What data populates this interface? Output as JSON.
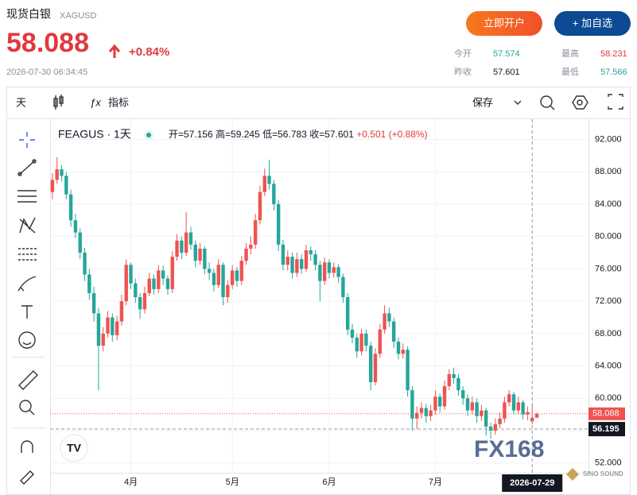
{
  "header": {
    "title": "现货白银",
    "symbol": "XAGUSD",
    "price": "58.088",
    "change": "+0.84%",
    "time": "2026-07-30 06:34:45",
    "buttons": [
      "立即开户",
      "+ 加自选"
    ],
    "stats": [
      {
        "label": "今开",
        "value": "57.574"
      },
      {
        "label": "最高",
        "value": "58.231"
      },
      {
        "label": "昨收",
        "value": "57.601"
      },
      {
        "label": "最低",
        "value": "57.566"
      }
    ]
  },
  "toolbar": {
    "interval": "天",
    "indicators": "指标",
    "save": "保存"
  },
  "watermark": "FX168",
  "brand": "SINO SOUND",
  "chart_data": {
    "type": "candlestick",
    "legend": {
      "symbol": "FEAGUS · 1天",
      "items": [
        "开=57.156",
        "高=59.245",
        "低=56.783",
        "收=57.601"
      ],
      "change": "+0.501 (+0.88%)"
    },
    "up_color": "#ef5350",
    "down_color": "#26a69a",
    "open": [
      85.5,
      87.0,
      88.3,
      87.5,
      85.2,
      82.0,
      80.5,
      78.0,
      75.3,
      73.0,
      70.5,
      66.5,
      68.0,
      70.0,
      67.8,
      69.5,
      72.0,
      76.5,
      74.2,
      72.5,
      71.0,
      73.0,
      74.8,
      73.5,
      75.8,
      74.8,
      73.5,
      77.5,
      79.5,
      78.0,
      80.5,
      79.0,
      77.0,
      78.5,
      76.0,
      75.5,
      74.0,
      76.5,
      72.5,
      74.0,
      75.8,
      74.5,
      77.0,
      78.5,
      79.0,
      82.0,
      85.5,
      87.5,
      86.5,
      84.0,
      79.0,
      76.5,
      77.5,
      75.5,
      77.2,
      76.0,
      78.3,
      77.8,
      76.5,
      74.5,
      76.8,
      75.5,
      76.2,
      75.0,
      72.5,
      68.5,
      67.5,
      65.8,
      68.0,
      66.5,
      62.0,
      65.5,
      68.5,
      70.5,
      69.5,
      67.0,
      65.5,
      66.0,
      61.0,
      57.5,
      58.2,
      58.8,
      57.8,
      58.5,
      60.2,
      59.0,
      61.5,
      63.0,
      62.5,
      61.0,
      60.0,
      58.5,
      59.5,
      57.8,
      58.5,
      56.5,
      56.0,
      56.8,
      57.5,
      59.5,
      60.5,
      58.5,
      59.5,
      58.0,
      57.156,
      57.601
    ],
    "high": [
      87.8,
      89.8,
      88.8,
      88.0,
      85.8,
      82.8,
      81.0,
      78.6,
      76.0,
      73.8,
      71.2,
      68.8,
      70.8,
      70.5,
      70.2,
      72.8,
      77.2,
      76.8,
      74.8,
      73.0,
      73.8,
      75.5,
      75.3,
      76.5,
      76.4,
      75.2,
      78.2,
      80.3,
      80.0,
      83.0,
      81.2,
      79.5,
      79.2,
      78.8,
      76.8,
      76.0,
      77.2,
      76.8,
      74.6,
      76.5,
      76.2,
      77.6,
      79.2,
      80.0,
      82.8,
      86.3,
      88.4,
      89.5,
      87.0,
      84.5,
      79.6,
      78.3,
      78.0,
      78.0,
      77.8,
      79.0,
      78.8,
      78.3,
      77.0,
      77.4,
      77.2,
      76.8,
      76.6,
      75.4,
      73.0,
      69.2,
      68.0,
      68.6,
      68.5,
      67.0,
      66.2,
      69.2,
      71.5,
      71.2,
      70.0,
      67.5,
      66.8,
      66.4,
      61.5,
      59.0,
      59.5,
      59.3,
      59.2,
      61.0,
      60.6,
      62.2,
      63.6,
      63.8,
      63.0,
      61.5,
      60.5,
      60.2,
      60.0,
      59.2,
      58.8,
      57.0,
      57.5,
      58.2,
      60.2,
      61.0,
      60.8,
      60.2,
      59.8,
      59.0,
      59.245,
      58.231
    ],
    "low": [
      84.6,
      86.5,
      86.8,
      84.6,
      81.2,
      79.8,
      77.2,
      74.5,
      72.2,
      69.5,
      61.0,
      65.8,
      67.5,
      67.0,
      67.2,
      69.0,
      71.5,
      73.5,
      71.8,
      69.8,
      70.5,
      72.6,
      72.8,
      73.0,
      74.0,
      72.8,
      73.0,
      77.0,
      77.2,
      77.6,
      78.4,
      76.2,
      76.5,
      75.3,
      74.6,
      73.2,
      73.6,
      71.5,
      71.8,
      73.5,
      73.8,
      74.0,
      76.5,
      77.8,
      78.5,
      81.5,
      85.0,
      85.8,
      83.2,
      78.2,
      75.8,
      75.8,
      74.8,
      75.0,
      75.4,
      75.6,
      77.0,
      75.8,
      72.0,
      74.0,
      74.8,
      74.9,
      74.3,
      71.8,
      67.8,
      66.8,
      65.0,
      65.3,
      65.8,
      61.0,
      61.6,
      65.0,
      68.0,
      68.8,
      66.2,
      64.8,
      64.9,
      60.2,
      56.0,
      56.2,
      57.5,
      57.0,
      57.2,
      58.0,
      58.3,
      58.6,
      61.0,
      61.8,
      60.3,
      59.2,
      57.8,
      58.0,
      57.0,
      57.2,
      55.4,
      55.0,
      55.5,
      56.3,
      57.0,
      59.0,
      58.0,
      58.0,
      57.4,
      57.3,
      56.783,
      57.566
    ],
    "close": [
      87.0,
      88.3,
      87.5,
      85.2,
      82.0,
      80.5,
      78.0,
      75.3,
      73.0,
      70.5,
      66.5,
      68.0,
      70.0,
      67.8,
      69.5,
      72.0,
      76.5,
      74.2,
      72.5,
      71.0,
      73.0,
      74.8,
      73.5,
      75.8,
      74.8,
      73.5,
      77.5,
      79.5,
      78.0,
      80.5,
      79.0,
      77.0,
      78.5,
      76.0,
      75.5,
      74.0,
      76.5,
      72.5,
      74.0,
      75.8,
      74.5,
      77.0,
      78.5,
      79.0,
      82.0,
      85.5,
      87.5,
      86.5,
      84.0,
      79.0,
      76.5,
      77.5,
      75.5,
      77.2,
      76.0,
      78.3,
      77.8,
      76.5,
      74.5,
      76.8,
      75.5,
      76.2,
      75.0,
      72.5,
      68.5,
      67.5,
      65.8,
      68.0,
      66.5,
      62.0,
      65.5,
      68.5,
      70.5,
      69.5,
      67.0,
      65.5,
      66.0,
      61.0,
      57.5,
      58.2,
      58.8,
      57.8,
      58.5,
      60.2,
      59.0,
      61.5,
      63.0,
      62.5,
      61.0,
      60.0,
      58.5,
      59.5,
      57.8,
      58.5,
      56.5,
      56.0,
      56.8,
      57.5,
      59.5,
      60.5,
      58.5,
      59.5,
      58.0,
      58.3,
      57.601,
      58.088
    ],
    "ylim": [
      50.8,
      94.5
    ],
    "yticks": [
      {
        "value": 52,
        "label": "52.000"
      },
      {
        "value": 56,
        "label": "56.000"
      },
      {
        "value": 60,
        "label": "60.000"
      },
      {
        "value": 64,
        "label": "64.000"
      },
      {
        "value": 68,
        "label": "68.000"
      },
      {
        "value": 72,
        "label": "72.000"
      },
      {
        "value": 76,
        "label": "76.000"
      },
      {
        "value": 80,
        "label": "80.000"
      },
      {
        "value": 84,
        "label": "84.000"
      },
      {
        "value": 88,
        "label": "88.000"
      },
      {
        "value": 92,
        "label": "92.000"
      }
    ],
    "xlim": [
      -0.5,
      116.2
    ],
    "xticks": [
      {
        "value": 17,
        "label": "4月"
      },
      {
        "value": 39,
        "label": "5月"
      },
      {
        "value": 60,
        "label": "6月"
      },
      {
        "value": 83,
        "label": "7月"
      }
    ],
    "grid": true,
    "last_price": 58.088,
    "last_color": "#ef5350",
    "crosshair": {
      "x": 104,
      "x_label": "2026-07-29",
      "y": 56.195
    }
  }
}
